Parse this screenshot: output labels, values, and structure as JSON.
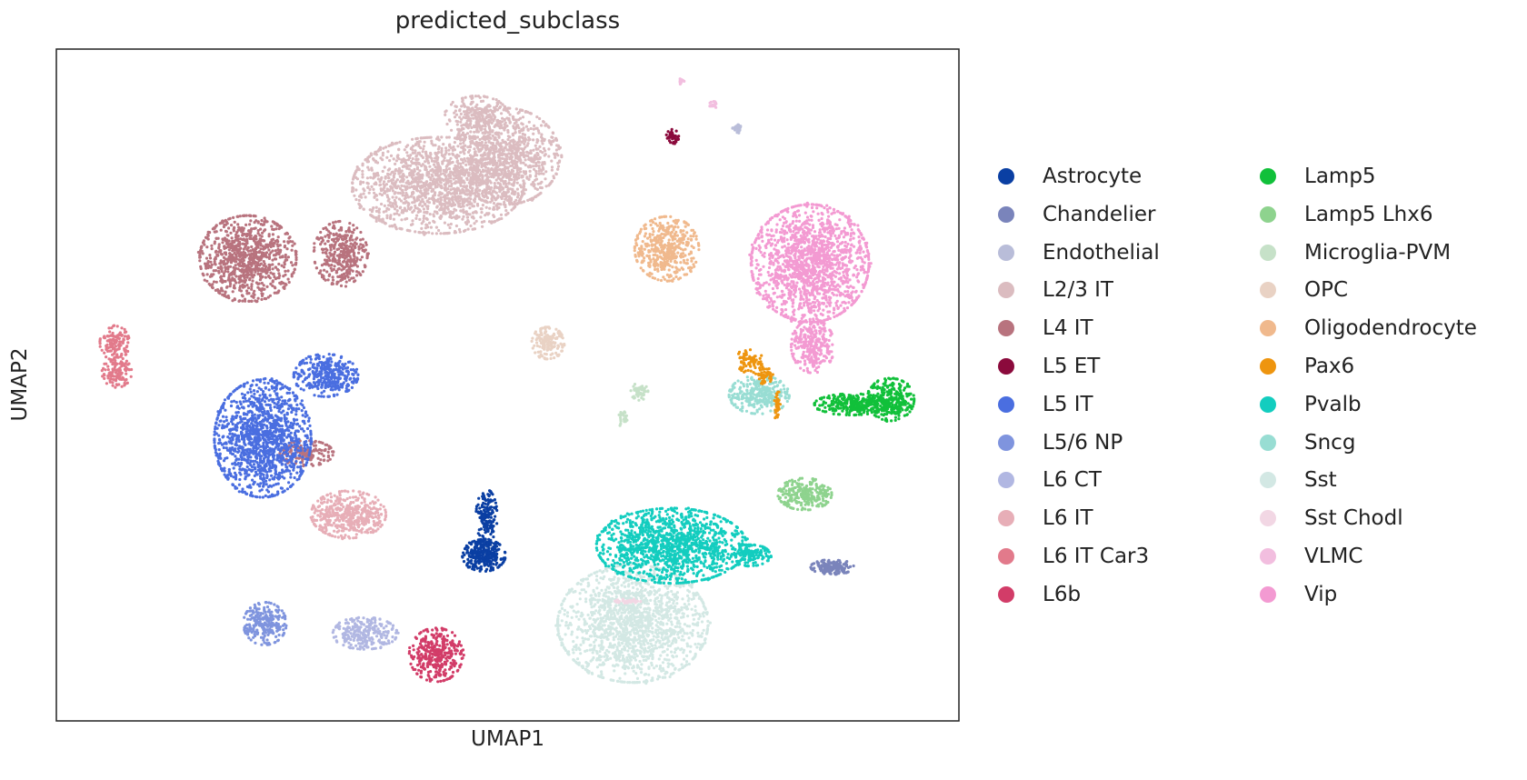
{
  "chart_data": {
    "type": "scatter",
    "title": "predicted_subclass",
    "xlabel": "UMAP1",
    "ylabel": "UMAP2",
    "xlim": [
      -10,
      20
    ],
    "ylim": [
      -10,
      15
    ],
    "grid": false,
    "ticks": false,
    "legend_position": "right-outside",
    "legend_columns": 2,
    "draw_order": [
      "Sst",
      "Sst Chodl",
      "L2/3 IT",
      "L4 IT",
      "L6 IT Car3",
      "L5 IT",
      "L6 IT",
      "Astrocyte",
      "L5/6 NP",
      "L6 CT",
      "L6b",
      "OPC",
      "Oligodendrocyte",
      "L5 ET",
      "Endothelial",
      "VLMC",
      "Microglia-PVM",
      "Vip",
      "Sncg",
      "Pax6",
      "Lamp5",
      "Lamp5 Lhx6",
      "Pvalb",
      "Chandelier"
    ],
    "series": [
      {
        "name": "Astrocyte",
        "color": "#0a3fa3",
        "clusters": [
          [
            4.21,
            -3.84,
            0.65,
            0.54,
            300
          ],
          [
            4.3,
            -2.39,
            0.32,
            0.91,
            160
          ]
        ]
      },
      {
        "name": "Chandelier",
        "color": "#7a84bb",
        "clusters": [
          [
            15.79,
            -4.27,
            0.65,
            0.25,
            160
          ]
        ]
      },
      {
        "name": "Endothelial",
        "color": "#b9bdd9",
        "clusters": [
          [
            12.65,
            12.03,
            0.16,
            0.14,
            30
          ]
        ]
      },
      {
        "name": "L2/3 IT",
        "color": "#dbbcc0",
        "clusters": [
          [
            2.69,
            9.93,
            2.59,
            1.63,
            1500
          ],
          [
            4.95,
            11.01,
            1.62,
            1.63,
            900
          ],
          [
            3.98,
            12.46,
            0.97,
            0.72,
            250
          ]
        ]
      },
      {
        "name": "L4 IT",
        "color": "#b8737e",
        "clusters": [
          [
            -3.63,
            7.21,
            1.46,
            1.45,
            900
          ],
          [
            -0.55,
            7.39,
            0.81,
            1.09,
            350
          ],
          [
            -1.68,
            -0.04,
            0.81,
            0.43,
            160
          ]
        ]
      },
      {
        "name": "L5 ET",
        "color": "#8b0a3c",
        "clusters": [
          [
            10.48,
            11.74,
            0.19,
            0.25,
            40
          ]
        ]
      },
      {
        "name": "L5 IT",
        "color": "#4a6ee0",
        "clusters": [
          [
            -3.14,
            0.51,
            1.46,
            1.99,
            1300
          ],
          [
            -1.04,
            2.86,
            0.97,
            0.72,
            350
          ]
        ]
      },
      {
        "name": "L5/6 NP",
        "color": "#7f94de",
        "clusters": [
          [
            -3.07,
            -6.38,
            0.65,
            0.72,
            250
          ]
        ]
      },
      {
        "name": "L6 CT",
        "color": "#b1b7e2",
        "clusters": [
          [
            0.26,
            -6.74,
            0.97,
            0.54,
            250
          ]
        ]
      },
      {
        "name": "L6 IT",
        "color": "#e7aeb7",
        "clusters": [
          [
            -0.29,
            -2.32,
            1.13,
            0.8,
            450
          ]
        ]
      },
      {
        "name": "L6 IT Car3",
        "color": "#e27a8b",
        "clusters": [
          [
            -8.06,
            4.06,
            0.45,
            0.58,
            130
          ],
          [
            -7.99,
            2.97,
            0.45,
            0.51,
            120
          ]
        ]
      },
      {
        "name": "L6b",
        "color": "#d23c68",
        "clusters": [
          [
            2.62,
            -7.54,
            0.81,
            0.91,
            350
          ]
        ]
      },
      {
        "name": "Lamp5",
        "color": "#11c03a",
        "clusters": [
          [
            16.44,
            1.78,
            1.13,
            0.36,
            300
          ],
          [
            17.73,
            1.96,
            0.71,
            0.72,
            300
          ]
        ]
      },
      {
        "name": "Lamp5 Lhx6",
        "color": "#8ed38e",
        "clusters": [
          [
            14.88,
            -1.56,
            0.81,
            0.54,
            250
          ]
        ]
      },
      {
        "name": "Microglia-PVM",
        "color": "#c6e1c8",
        "clusters": [
          [
            9.38,
            2.25,
            0.26,
            0.29,
            60
          ],
          [
            8.83,
            1.23,
            0.13,
            0.29,
            25
          ]
        ]
      },
      {
        "name": "OPC",
        "color": "#e9d2c4",
        "clusters": [
          [
            6.34,
            4.06,
            0.49,
            0.54,
            160
          ]
        ]
      },
      {
        "name": "Oligodendrocyte",
        "color": "#f0b98d",
        "clusters": [
          [
            10.29,
            7.57,
            0.97,
            1.09,
            450
          ]
        ]
      },
      {
        "name": "Pax6",
        "color": "#ee950f",
        "clusters": [
          [
            13.04,
            3.41,
            0.39,
            0.43,
            70
          ],
          [
            13.53,
            2.86,
            0.26,
            0.29,
            50
          ],
          [
            13.95,
            1.78,
            0.1,
            0.54,
            40
          ]
        ]
      },
      {
        "name": "Pvalb",
        "color": "#13cdbf",
        "clusters": [
          [
            10.45,
            -3.48,
            2.27,
            1.27,
            1300
          ],
          [
            13.04,
            -3.84,
            0.65,
            0.36,
            150
          ]
        ]
      },
      {
        "name": "Sncg",
        "color": "#98ddd3",
        "clusters": [
          [
            13.36,
            2.14,
            0.91,
            0.65,
            300
          ]
        ]
      },
      {
        "name": "Sst",
        "color": "#d3e8e4",
        "clusters": [
          [
            9.16,
            -6.38,
            2.27,
            1.99,
            1600
          ]
        ]
      },
      {
        "name": "Sst Chodl",
        "color": "#f2d7e4",
        "clusters": [
          [
            9.0,
            -5.54,
            0.39,
            0.07,
            40
          ]
        ]
      },
      {
        "name": "VLMC",
        "color": "#f2bedf",
        "clusters": [
          [
            11.84,
            12.9,
            0.13,
            0.14,
            20
          ],
          [
            10.78,
            13.8,
            0.1,
            0.1,
            15
          ]
        ]
      },
      {
        "name": "Vip",
        "color": "#f39ad2",
        "clusters": [
          [
            15.05,
            7.03,
            1.78,
            1.99,
            1500
          ],
          [
            15.14,
            3.95,
            0.65,
            0.91,
            300
          ]
        ]
      }
    ]
  }
}
